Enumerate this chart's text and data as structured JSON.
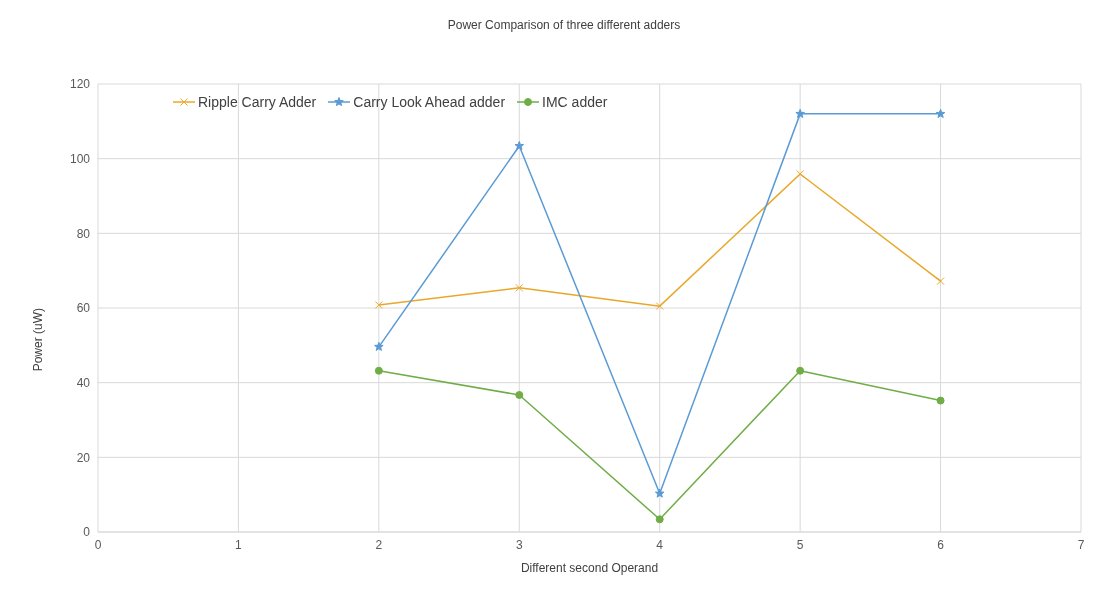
{
  "chart_data": {
    "type": "line",
    "title": "Power Comparison of three different adders",
    "xlabel": "Different second Operand",
    "ylabel": "Power (uW)",
    "x": [
      2,
      3,
      4,
      5,
      6
    ],
    "series": [
      {
        "name": "Ripple Carry Adder",
        "color": "#e8a82a",
        "marker": "cross",
        "values": [
          60.8,
          65.4,
          60.5,
          95.9,
          67.2
        ]
      },
      {
        "name": "Carry Look Ahead adder",
        "color": "#5b9bd5",
        "marker": "star",
        "values": [
          49.6,
          103.4,
          10.3,
          112,
          112
        ]
      },
      {
        "name": "IMC adder",
        "color": "#70ad47",
        "marker": "circle",
        "values": [
          43.2,
          36.7,
          3.4,
          43.2,
          35.2
        ]
      }
    ],
    "xlim": [
      0,
      7
    ],
    "xticks": [
      0,
      1,
      2,
      3,
      4,
      5,
      6,
      7
    ],
    "ylim": [
      0,
      120
    ],
    "yticks": [
      0,
      20,
      40,
      60,
      80,
      100,
      120
    ],
    "grid": true,
    "legend": "top left",
    "line_style": "solid"
  }
}
